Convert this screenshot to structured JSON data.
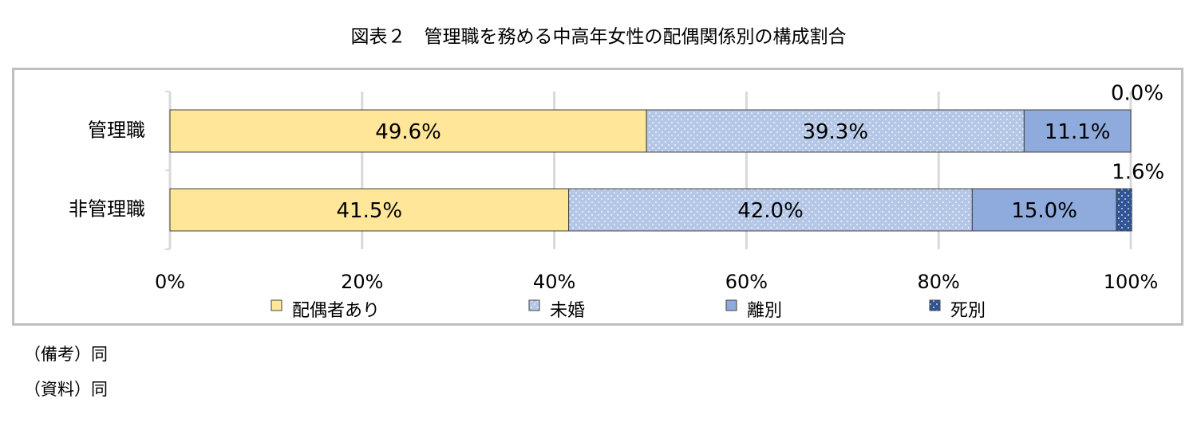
{
  "chart_data": {
    "type": "stacked-barh",
    "title": "図表２　管理職を務める中高年女性の配偶関係別の構成割合",
    "categories": [
      "管理職",
      "非管理職"
    ],
    "series": [
      {
        "name": "配偶者あり",
        "color": "#ffe699",
        "values": [
          49.6,
          41.5
        ],
        "value_labels": [
          "49.6%",
          "41.5%"
        ]
      },
      {
        "name": "未婚",
        "color": "#b4c7e7",
        "pattern": "dots",
        "values": [
          39.3,
          42.0
        ],
        "value_labels": [
          "39.3%",
          "42.0%"
        ]
      },
      {
        "name": "離別",
        "color": "#8faadc",
        "values": [
          11.1,
          15.0
        ],
        "value_labels": [
          "11.1%",
          "15.0%"
        ]
      },
      {
        "name": "死別",
        "color": "#2f5597",
        "pattern": "dots",
        "values": [
          0.0,
          1.6
        ],
        "value_labels": [
          "0.0%",
          "1.6%"
        ]
      }
    ],
    "xlim": [
      0,
      100
    ],
    "xticks": [
      {
        "value": 0,
        "label": "0%"
      },
      {
        "value": 20,
        "label": "20%"
      },
      {
        "value": 40,
        "label": "40%"
      },
      {
        "value": 60,
        "label": "60%"
      },
      {
        "value": 80,
        "label": "80%"
      },
      {
        "value": 100,
        "label": "100%"
      }
    ],
    "grid": true,
    "legend": "bottom"
  },
  "notes": [
    "（備考）同",
    "（資料）同"
  ]
}
